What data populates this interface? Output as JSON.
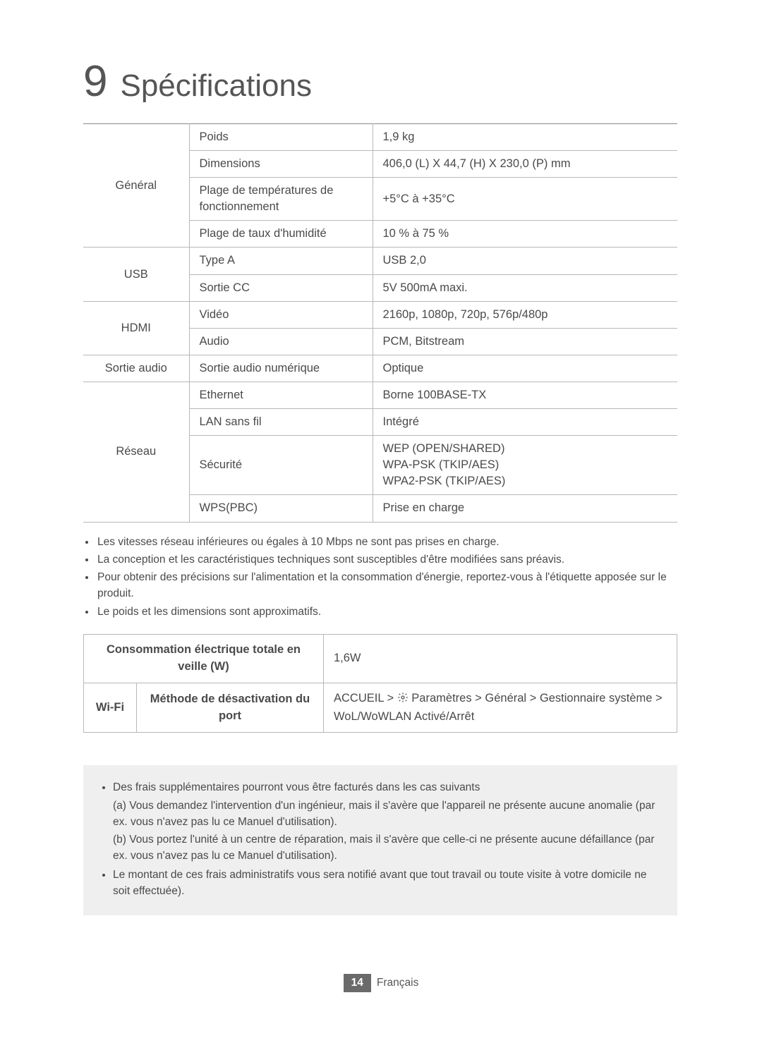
{
  "chapter": {
    "number": "9",
    "title": "Spécifications"
  },
  "specs": {
    "general": {
      "label": "Général",
      "rows": [
        {
          "k": "Poids",
          "v": "1,9 kg"
        },
        {
          "k": "Dimensions",
          "v": "406,0 (L) X 44,7 (H) X 230,0 (P) mm"
        },
        {
          "k": "Plage de températures de fonctionnement",
          "v": "+5°C à +35°C"
        },
        {
          "k": "Plage de taux d'humidité",
          "v": "10 % à 75 %"
        }
      ]
    },
    "usb": {
      "label": "USB",
      "rows": [
        {
          "k": "Type A",
          "v": "USB 2,0"
        },
        {
          "k": "Sortie CC",
          "v": "5V 500mA maxi."
        }
      ]
    },
    "hdmi": {
      "label": "HDMI",
      "rows": [
        {
          "k": "Vidéo",
          "v": "2160p, 1080p, 720p, 576p/480p"
        },
        {
          "k": "Audio",
          "v": "PCM, Bitstream"
        }
      ]
    },
    "audio_out": {
      "label": "Sortie audio",
      "k": "Sortie audio numérique",
      "v": "Optique"
    },
    "network": {
      "label": "Réseau",
      "rows": [
        {
          "k": "Ethernet",
          "v": "Borne 100BASE-TX"
        },
        {
          "k": "LAN sans fil",
          "v": "Intégré"
        },
        {
          "k": "Sécurité",
          "v": "WEP (OPEN/SHARED)\nWPA-PSK (TKIP/AES)\nWPA2-PSK (TKIP/AES)"
        },
        {
          "k": "WPS(PBC)",
          "v": "Prise en charge"
        }
      ]
    }
  },
  "notes": [
    "Les vitesses réseau inférieures ou égales à 10 Mbps ne sont pas prises en charge.",
    "La conception et les caractéristiques techniques sont susceptibles d'être modifiées sans préavis.",
    "Pour obtenir des précisions sur l'alimentation et la consommation d'énergie, reportez-vous à l'étiquette apposée sur le produit.",
    "Le poids et les dimensions sont approximatifs."
  ],
  "power": {
    "standby_label": "Consommation électrique totale en veille (W)",
    "standby_value": "1,6W",
    "wifi_label": "Wi-Fi",
    "method_label": "Méthode de désactivation du port",
    "path_prefix": "ACCUEIL > ",
    "path_after_icon": " Paramètres > Général > Gestionnaire système > WoL/WoWLAN Activé/Arrêt"
  },
  "greybox": {
    "item1_lead": "Des frais supplémentaires pourront vous être facturés dans les cas suivants",
    "item1_a": "(a) Vous demandez l'intervention d'un ingénieur, mais il s'avère que l'appareil ne présente aucune anomalie (par ex. vous n'avez pas lu ce Manuel d'utilisation).",
    "item1_b": "(b) Vous portez l'unité à un centre de réparation, mais il s'avère que celle-ci ne présente aucune défaillance (par ex. vous n'avez pas lu ce Manuel d'utilisation).",
    "item2": "Le montant de ces frais administratifs vous sera notifié avant que tout travail ou toute visite à votre domicile ne soit effectuée)."
  },
  "footer": {
    "page": "14",
    "lang": "Français"
  },
  "colors": {
    "text": "#4a4a4a",
    "border": "#b8b8b8",
    "border_strong": "#888888",
    "greybox_bg": "#efefef",
    "footer_badge_bg": "#6a6a6a",
    "background": "#ffffff"
  }
}
